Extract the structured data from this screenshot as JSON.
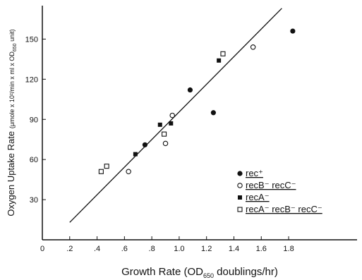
{
  "chart_data": {
    "type": "scatter",
    "xlabel": "Growth Rate (OD₆₅₀ doublings/hr)",
    "ylabel": "Oxygen Uptake Rate (μmole x 10²/min x ml x OD₆₅₀ unit)",
    "xlim": [
      0,
      2.3
    ],
    "ylim": [
      0,
      175
    ],
    "x_ticks": [
      "0",
      ".2",
      ".4",
      ".6",
      ".8",
      "1.0",
      "1.2",
      "1.4",
      "1.6",
      "1.8"
    ],
    "y_ticks": [
      "30",
      "60",
      "90",
      "120",
      "150"
    ],
    "legend_position": "right",
    "series": [
      {
        "name": "rec⁺",
        "marker": "filled-circle",
        "points": [
          [
            0.75,
            71
          ],
          [
            1.08,
            112
          ],
          [
            1.25,
            95
          ],
          [
            1.83,
            156
          ]
        ]
      },
      {
        "name": "recB⁻ recC⁻",
        "marker": "open-circle",
        "points": [
          [
            0.63,
            51
          ],
          [
            0.9,
            72
          ],
          [
            0.95,
            93
          ],
          [
            1.54,
            144
          ]
        ]
      },
      {
        "name": "recA⁻",
        "marker": "filled-square",
        "points": [
          [
            0.68,
            64
          ],
          [
            0.86,
            86
          ],
          [
            0.94,
            87
          ],
          [
            1.29,
            134
          ]
        ]
      },
      {
        "name": "recA⁻ recB⁻ recC⁻",
        "marker": "open-square",
        "points": [
          [
            0.43,
            51
          ],
          [
            0.47,
            55
          ],
          [
            0.89,
            79
          ],
          [
            1.32,
            139
          ]
        ]
      }
    ],
    "fit_line": [
      [
        0.2,
        13
      ],
      [
        1.75,
        173
      ]
    ]
  }
}
